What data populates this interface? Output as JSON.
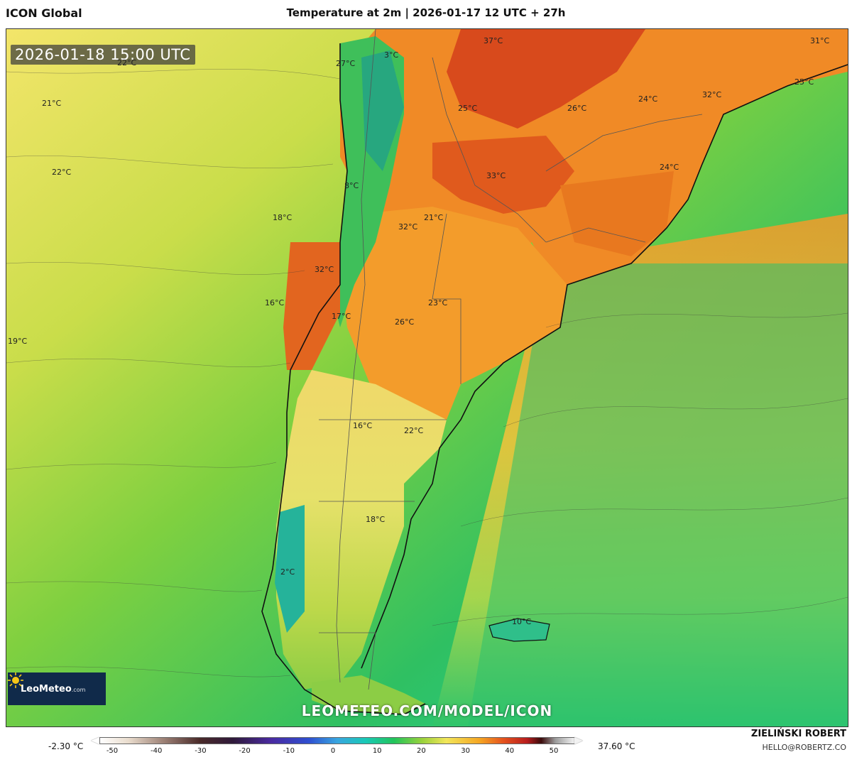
{
  "header": {
    "model_name": "ICON Global",
    "run_title": "Temperature at 2m | 2026-01-17 12 UTC + 27h"
  },
  "map": {
    "valid_time": "2026-01-18 15:00 UTC",
    "temperature_labels": [
      {
        "id": "t37",
        "text": "37°C"
      },
      {
        "id": "t31",
        "text": "31°C"
      },
      {
        "id": "t22a",
        "text": "22°C"
      },
      {
        "id": "t27",
        "text": "27°C"
      },
      {
        "id": "t3",
        "text": "3°C"
      },
      {
        "id": "t21a",
        "text": "21°C"
      },
      {
        "id": "t25a",
        "text": "25°C"
      },
      {
        "id": "t26a",
        "text": "26°C"
      },
      {
        "id": "t24a",
        "text": "24°C"
      },
      {
        "id": "t32a",
        "text": "32°C"
      },
      {
        "id": "t25b",
        "text": "25°C"
      },
      {
        "id": "t22b",
        "text": "22°C"
      },
      {
        "id": "t33",
        "text": "33°C"
      },
      {
        "id": "t24b",
        "text": "24°C"
      },
      {
        "id": "t8",
        "text": "8°C"
      },
      {
        "id": "t18a",
        "text": "18°C"
      },
      {
        "id": "t21b",
        "text": "21°C"
      },
      {
        "id": "t32b",
        "text": "32°C"
      },
      {
        "id": "t32c",
        "text": "32°C"
      },
      {
        "id": "t16a",
        "text": "16°C"
      },
      {
        "id": "t23",
        "text": "23°C"
      },
      {
        "id": "t17",
        "text": "17°C"
      },
      {
        "id": "t26b",
        "text": "26°C"
      },
      {
        "id": "t19",
        "text": "19°C"
      },
      {
        "id": "t16b",
        "text": "16°C"
      },
      {
        "id": "t22c",
        "text": "22°C"
      },
      {
        "id": "t18b",
        "text": "18°C"
      },
      {
        "id": "t2",
        "text": "2°C"
      },
      {
        "id": "t10",
        "text": "10°C"
      }
    ]
  },
  "branding": {
    "logo_text": "LeoMeteo",
    "logo_suffix": ".com",
    "url": "LEOMETEO.COM/MODEL/ICON",
    "author": "ZIELIŃSKI ROBERT",
    "email": "HELLO@ROBERTZ.CO"
  },
  "legend": {
    "min_label": "-2.30 °C",
    "max_label": "37.60 °C",
    "ticks": [
      "-50",
      "-40",
      "-30",
      "-20",
      "-10",
      "0",
      "10",
      "20",
      "30",
      "40",
      "50"
    ],
    "colors": {
      "cold": "#2f4fd0",
      "zero": "#39a6e0",
      "mild": "#22c45a",
      "warm": "#f2e65a",
      "hot": "#e5531e",
      "extreme": "#3b0b0b"
    }
  }
}
